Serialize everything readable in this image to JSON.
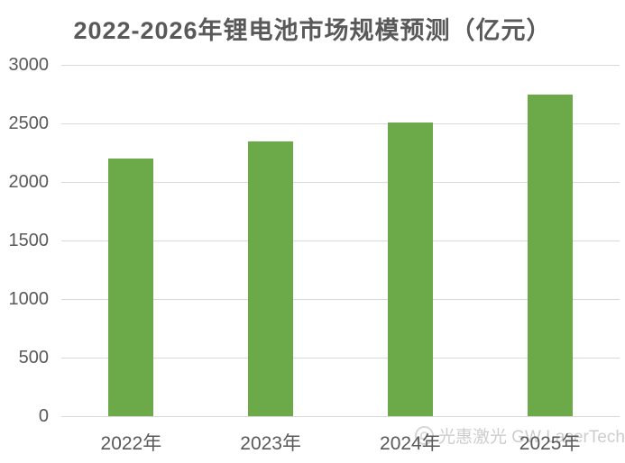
{
  "header": {
    "title": "2022-2026年锂电池市场规模预测（亿元）"
  },
  "watermark": {
    "icon": "gw-laser-logo-icon",
    "text": "光惠激光 GW LaserTech"
  },
  "colors": {
    "bar": "#6CA948",
    "grid": "#D9D9D9",
    "axis_text": "#595959",
    "title_text": "#595959",
    "watermark_text": "#BDBDBD",
    "background": "#FFFFFF"
  },
  "chart_data": {
    "type": "bar",
    "title": "2022-2026年锂电池市场规模预测（亿元）",
    "categories": [
      "2022年",
      "2023年",
      "2024年",
      "2025年"
    ],
    "values": [
      2200,
      2350,
      2510,
      2750
    ],
    "series_unit": "亿元",
    "xlabel": "",
    "ylabel": "",
    "ylim": [
      0,
      3000
    ],
    "yticks": [
      0,
      500,
      1000,
      1500,
      2000,
      2500,
      3000
    ],
    "grid": true,
    "legend": false,
    "legend_position": "none",
    "bar_color": "#6CA948",
    "note": "title range extends to 2026 but only 2022-2025 bars are visible in the cropped image"
  }
}
